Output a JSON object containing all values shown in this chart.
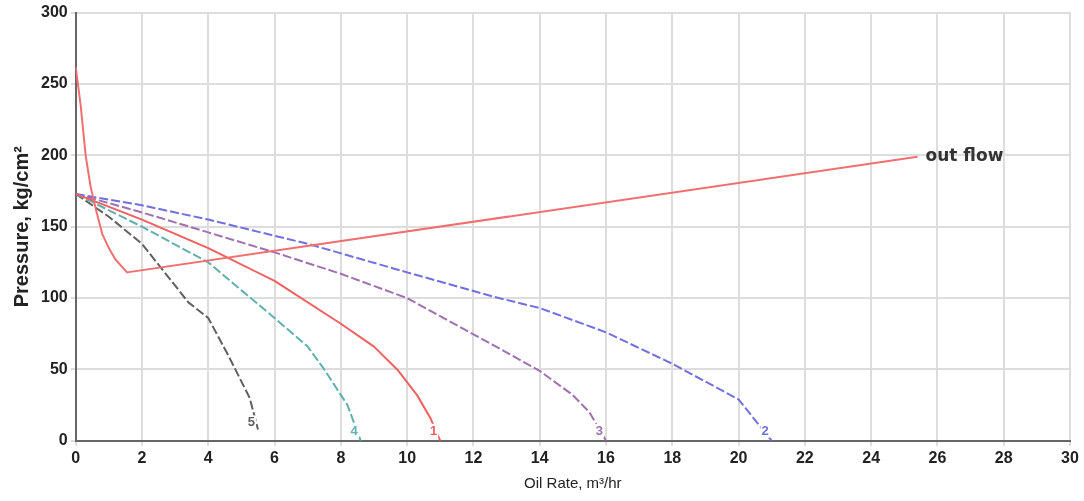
{
  "chart_data": {
    "type": "line",
    "xlabel": "Oil Rate, m³/hr",
    "ylabel": "Pressure, kg/cm²",
    "xlim": [
      0,
      30
    ],
    "ylim": [
      0,
      300
    ],
    "xticks": [
      0,
      2,
      4,
      6,
      8,
      10,
      12,
      14,
      16,
      18,
      20,
      22,
      24,
      26,
      28,
      30
    ],
    "yticks": [
      0,
      50,
      100,
      150,
      200,
      250,
      300
    ],
    "grid": true,
    "legend": false,
    "marker": "none",
    "series": [
      {
        "name": "out flow",
        "color": "#f07070",
        "line_style": "solid",
        "x": [
          0,
          0.15,
          0.3,
          0.45,
          0.6,
          0.8,
          1.0,
          1.2,
          1.55,
          25.4
        ],
        "values": [
          262,
          235,
          200,
          178,
          163,
          145,
          135,
          127,
          118,
          199
        ]
      },
      {
        "name": "1",
        "color": "#f06060",
        "line_style": "solid",
        "x": [
          0,
          2,
          4,
          6,
          8,
          9,
          9.7,
          10.3,
          10.7,
          11
        ],
        "values": [
          173,
          155,
          135,
          112,
          82,
          66,
          50,
          32,
          16,
          0
        ]
      },
      {
        "name": "2",
        "color": "#7070e0",
        "line_style": "dashed",
        "x": [
          0,
          2,
          4,
          7,
          10,
          12.6,
          14,
          16,
          18,
          20,
          21
        ],
        "values": [
          173,
          165,
          155,
          138,
          118,
          101,
          93,
          76,
          54,
          29,
          0
        ]
      },
      {
        "name": "3",
        "color": "#a070b0",
        "line_style": "dashed",
        "x": [
          0,
          2,
          4,
          6,
          8,
          10,
          12.6,
          14,
          15,
          15.5,
          16
        ],
        "values": [
          173,
          160,
          146,
          132,
          117,
          100,
          67,
          49,
          32,
          20,
          0
        ]
      },
      {
        "name": "4",
        "color": "#60b0b0",
        "line_style": "dashed",
        "x": [
          0,
          2,
          4,
          6,
          7,
          7.5,
          8.2,
          8.6
        ],
        "values": [
          173,
          150,
          125,
          86,
          66,
          50,
          25,
          0
        ]
      },
      {
        "name": "5",
        "color": "#606060",
        "line_style": "dashed",
        "x": [
          0,
          1,
          2,
          3.4,
          4,
          4.6,
          5.25,
          5.5
        ],
        "values": [
          173,
          157,
          138,
          97,
          86,
          60,
          30,
          8
        ]
      }
    ]
  }
}
